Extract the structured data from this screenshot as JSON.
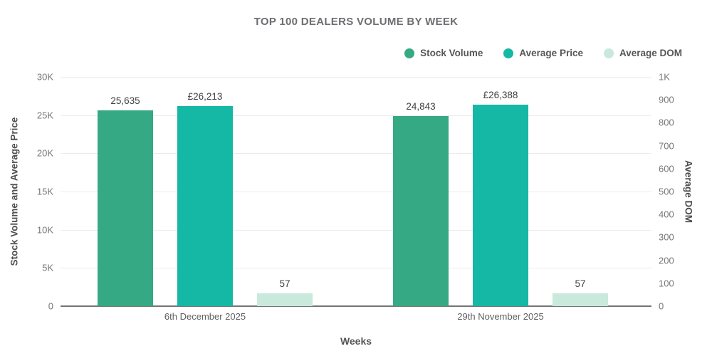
{
  "title": "TOP 100 DEALERS VOLUME BY WEEK",
  "colors": {
    "stock_volume": "#35a983",
    "average_price": "#15b7a5",
    "average_dom": "#c8e9dc",
    "title_text": "#6d6e71",
    "tick_text": "#777777",
    "gridline": "#ececec",
    "baseline": "#757575"
  },
  "legend": [
    {
      "label": "Stock Volume",
      "color_key": "stock_volume"
    },
    {
      "label": "Average Price",
      "color_key": "average_price"
    },
    {
      "label": "Average DOM",
      "color_key": "average_dom"
    }
  ],
  "chart_data": {
    "type": "bar",
    "title": "TOP 100 DEALERS VOLUME BY WEEK",
    "categories": [
      "6th December 2025",
      "29th November 2025"
    ],
    "series": [
      {
        "name": "Stock Volume",
        "axis": "left",
        "color_key": "stock_volume",
        "values": [
          25635,
          24843
        ],
        "labels": [
          "25,635",
          "24,843"
        ]
      },
      {
        "name": "Average Price",
        "axis": "left",
        "color_key": "average_price",
        "values": [
          26213,
          26388
        ],
        "labels": [
          "£26,213",
          "£26,388"
        ]
      },
      {
        "name": "Average DOM",
        "axis": "right",
        "color_key": "average_dom",
        "values": [
          57,
          57
        ],
        "labels": [
          "57",
          "57"
        ]
      }
    ],
    "left_axis": {
      "label": "Stock Volume and Average Price",
      "min": 0,
      "max": 30000,
      "ticks": [
        "30K",
        "25K",
        "20K",
        "15K",
        "10K",
        "5K",
        "0"
      ]
    },
    "right_axis": {
      "label": "Average DOM",
      "min": 0,
      "max": 1000,
      "ticks": [
        "1K",
        "900",
        "800",
        "700",
        "600",
        "500",
        "400",
        "300",
        "200",
        "100",
        "0"
      ]
    },
    "xlabel": "Weeks",
    "grid": true,
    "legend_position": "top-right"
  }
}
